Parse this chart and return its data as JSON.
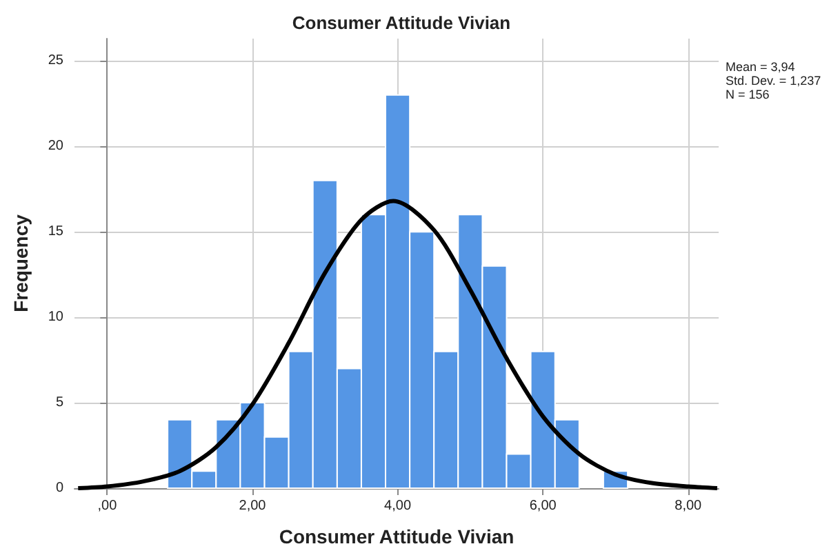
{
  "chart_data": {
    "type": "histogram",
    "title": "Consumer Attitude Vivian",
    "xlabel": "Consumer Attitude Vivian",
    "ylabel": "Frequency",
    "bins": [
      0.833,
      1.167,
      1.5,
      1.833,
      2.167,
      2.5,
      2.833,
      3.167,
      3.5,
      3.833,
      4.167,
      4.5,
      4.833,
      5.167,
      5.5,
      5.833,
      6.167,
      6.5,
      6.833,
      7.167
    ],
    "values": [
      4,
      1,
      4,
      5,
      3,
      8,
      18,
      7,
      16,
      23,
      15,
      8,
      16,
      13,
      2,
      8,
      4,
      0,
      1
    ],
    "color": "#5596e5",
    "series": [
      {
        "type": "line",
        "color": "#000000",
        "x": [
          -0.4,
          0,
          0.5,
          1,
          1.5,
          2,
          2.5,
          3,
          3.5,
          3.94,
          4.5,
          5,
          5.5,
          6,
          6.5,
          7,
          7.5,
          8,
          8.4
        ],
        "values": [
          0,
          0.1,
          0.4,
          1.0,
          2.4,
          4.9,
          8.5,
          12.6,
          15.7,
          16.8,
          15.1,
          11.6,
          7.6,
          4.2,
          2.0,
          0.8,
          0.3,
          0.1,
          0
        ]
      }
    ],
    "xlim": [
      -0.45,
      8.42
    ],
    "xticks": [
      {
        "value": 0,
        "label": ",00"
      },
      {
        "value": 2,
        "label": "2,00"
      },
      {
        "value": 4,
        "label": "4,00"
      },
      {
        "value": 6,
        "label": "6,00"
      },
      {
        "value": 8,
        "label": "8,00"
      }
    ],
    "ylim": [
      0,
      26.3
    ],
    "yticks": [
      0,
      5,
      10,
      15,
      20,
      25
    ],
    "grid": true,
    "marker": "none",
    "line_style": "solid",
    "annotations": [
      "Mean = 3,94",
      "Std. Dev. = 1,237",
      "N = 156"
    ]
  }
}
